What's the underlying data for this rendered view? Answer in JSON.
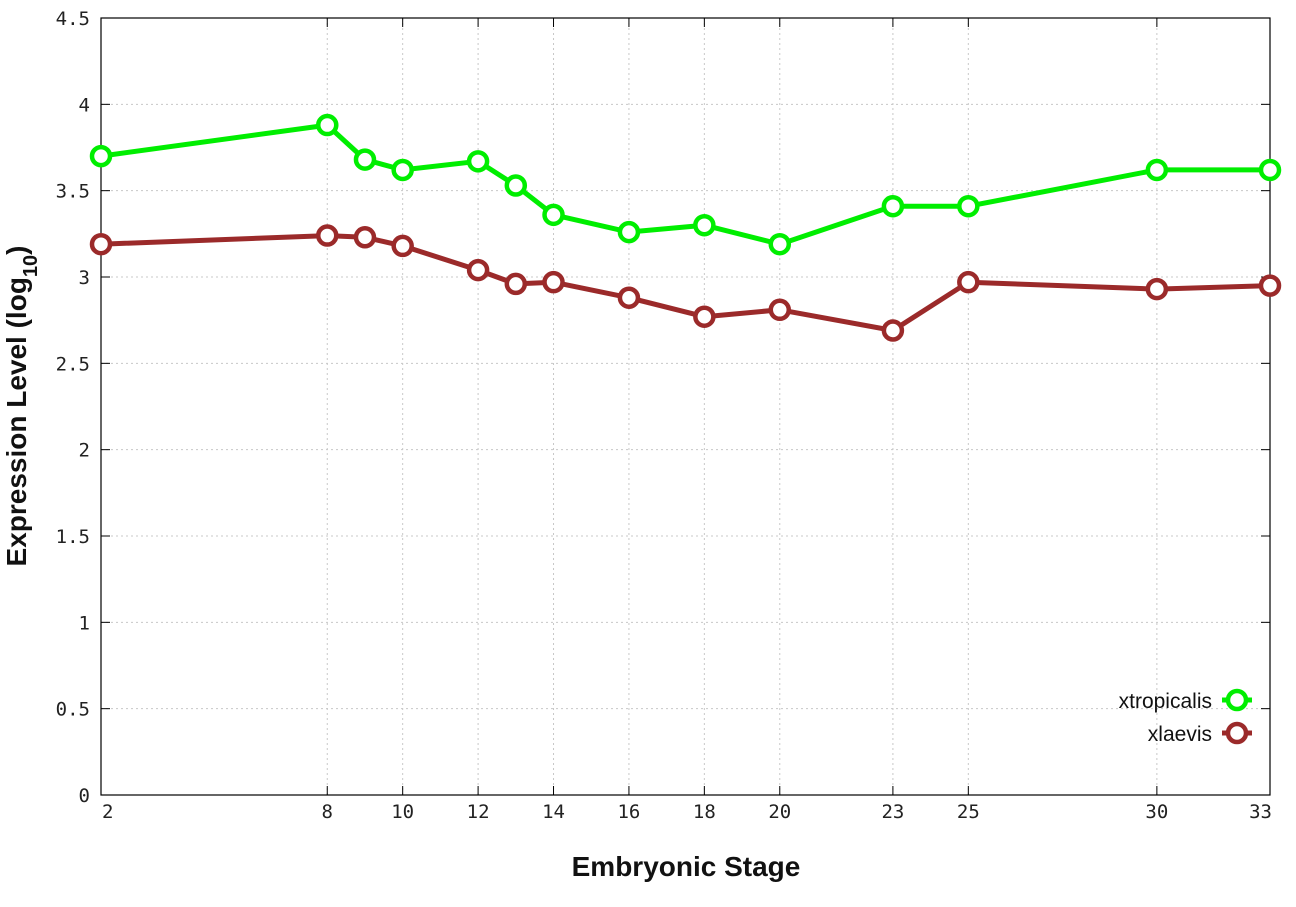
{
  "chart_data": {
    "type": "line",
    "title": "",
    "xlabel": "Embryonic Stage",
    "ylabel_main": "Expression Level (log",
    "ylabel_sub": "10",
    "ylabel_close": ")",
    "x": [
      2,
      8,
      9,
      10,
      12,
      13,
      14,
      16,
      18,
      20,
      23,
      25,
      30,
      33
    ],
    "x_ticks": [
      2,
      8,
      10,
      12,
      14,
      16,
      18,
      20,
      23,
      25,
      30,
      33
    ],
    "x_tick_labels": [
      "2",
      "8",
      "10",
      "12",
      "14",
      "16",
      "18",
      "20",
      "23",
      "25",
      "30",
      "33"
    ],
    "y_ticks": [
      0,
      0.5,
      1,
      1.5,
      2,
      2.5,
      3,
      3.5,
      4,
      4.5
    ],
    "y_tick_labels": [
      "0",
      "0.5",
      "1",
      "1.5",
      "2",
      "2.5",
      "3",
      "3.5",
      "4",
      "4.5"
    ],
    "xlim": [
      2,
      33
    ],
    "ylim": [
      0,
      4.5
    ],
    "grid": true,
    "legend_position": "bottom-right",
    "series": [
      {
        "name": "xtropicalis",
        "color": "#00ee00",
        "values": [
          3.7,
          3.88,
          3.68,
          3.62,
          3.67,
          3.53,
          3.36,
          3.26,
          3.3,
          3.19,
          3.41,
          3.41,
          3.62,
          3.62
        ]
      },
      {
        "name": "xlaevis",
        "color": "#9b2a2a",
        "values": [
          3.19,
          3.24,
          3.23,
          3.18,
          3.04,
          2.96,
          2.97,
          2.88,
          2.77,
          2.81,
          2.69,
          2.97,
          2.93,
          2.95
        ]
      }
    ]
  }
}
